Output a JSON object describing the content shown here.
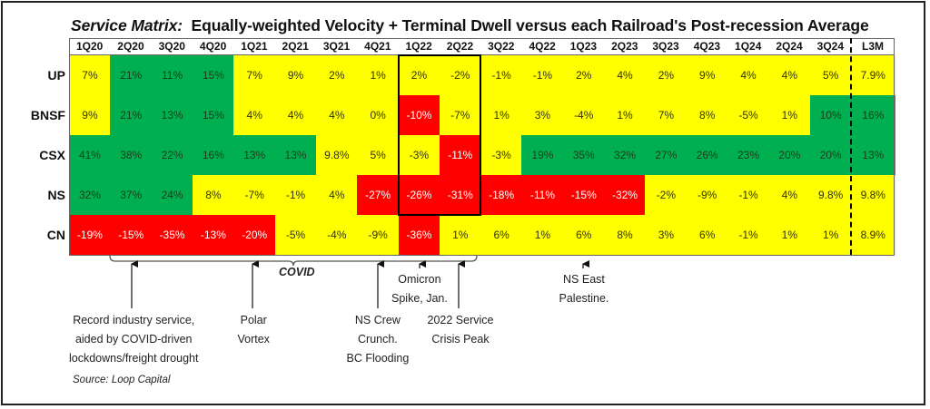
{
  "chart_data": {
    "type": "heatmap",
    "title_prefix": "Service Matrix:",
    "title": "Equally-weighted Velocity + Terminal Dwell versus each Railroad's Post-recession Average",
    "columns": [
      "1Q20",
      "2Q20",
      "3Q20",
      "4Q20",
      "1Q21",
      "2Q21",
      "3Q21",
      "4Q21",
      "1Q22",
      "2Q22",
      "3Q22",
      "4Q22",
      "1Q23",
      "2Q23",
      "3Q23",
      "4Q23",
      "1Q24",
      "2Q24",
      "3Q24",
      "L3M"
    ],
    "rows": [
      {
        "name": "UP",
        "values": [
          "7%",
          "21%",
          "11%",
          "15%",
          "7%",
          "9%",
          "2%",
          "1%",
          "2%",
          "-2%",
          "-1%",
          "-1%",
          "2%",
          "4%",
          "2%",
          "9%",
          "4%",
          "4%",
          "5%",
          "7.9%"
        ],
        "colors": [
          "y",
          "g",
          "g",
          "g",
          "y",
          "y",
          "y",
          "y",
          "y",
          "y",
          "y",
          "y",
          "y",
          "y",
          "y",
          "y",
          "y",
          "y",
          "y",
          "y"
        ]
      },
      {
        "name": "BNSF",
        "values": [
          "9%",
          "21%",
          "13%",
          "15%",
          "4%",
          "4%",
          "4%",
          "0%",
          "-10%",
          "-7%",
          "1%",
          "3%",
          "-4%",
          "1%",
          "7%",
          "8%",
          "-5%",
          "1%",
          "10%",
          "16%"
        ],
        "colors": [
          "y",
          "g",
          "g",
          "g",
          "y",
          "y",
          "y",
          "y",
          "r",
          "y",
          "y",
          "y",
          "y",
          "y",
          "y",
          "y",
          "y",
          "y",
          "g",
          "g"
        ]
      },
      {
        "name": "CSX",
        "values": [
          "41%",
          "38%",
          "22%",
          "16%",
          "13%",
          "13%",
          "9.8%",
          "5%",
          "-3%",
          "-11%",
          "-3%",
          "19%",
          "35%",
          "32%",
          "27%",
          "26%",
          "23%",
          "20%",
          "20%",
          "13%"
        ],
        "colors": [
          "g",
          "g",
          "g",
          "g",
          "g",
          "g",
          "y",
          "y",
          "y",
          "r",
          "y",
          "g",
          "g",
          "g",
          "g",
          "g",
          "g",
          "g",
          "g",
          "g"
        ]
      },
      {
        "name": "NS",
        "values": [
          "32%",
          "37%",
          "24%",
          "8%",
          "-7%",
          "-1%",
          "4%",
          "-27%",
          "-26%",
          "-31%",
          "-18%",
          "-11%",
          "-15%",
          "-32%",
          "-2%",
          "-9%",
          "-1%",
          "4%",
          "9.8%",
          "9.8%"
        ],
        "colors": [
          "g",
          "g",
          "g",
          "y",
          "y",
          "y",
          "y",
          "r",
          "r",
          "r",
          "r",
          "r",
          "r",
          "r",
          "y",
          "y",
          "y",
          "y",
          "y",
          "y"
        ]
      },
      {
        "name": "CN",
        "values": [
          "-19%",
          "-15%",
          "-35%",
          "-13%",
          "-20%",
          "-5%",
          "-4%",
          "-9%",
          "-36%",
          "1%",
          "6%",
          "1%",
          "6%",
          "8%",
          "3%",
          "6%",
          "-1%",
          "1%",
          "1%",
          "8.9%"
        ],
        "colors": [
          "r",
          "r",
          "r",
          "r",
          "r",
          "y",
          "y",
          "y",
          "r",
          "y",
          "y",
          "y",
          "y",
          "y",
          "y",
          "y",
          "y",
          "y",
          "y",
          "y"
        ]
      }
    ],
    "color_legend": {
      "g": "#00b050",
      "y": "#ffff00",
      "r": "#ff0000"
    },
    "highlight_columns": [
      "1Q22",
      "2Q22"
    ],
    "separator_before": "L3M"
  },
  "annotations": {
    "covid_label": "COVID",
    "items": [
      {
        "column": "2Q20",
        "lines": [
          "Record industry service,",
          "aided by COVID-driven",
          "lockdowns/freight drought"
        ]
      },
      {
        "column": "1Q21",
        "lines": [
          "Polar",
          "Vortex"
        ]
      },
      {
        "column": "4Q21",
        "lines": [
          "NS Crew",
          "Crunch.",
          "BC Flooding"
        ]
      },
      {
        "column": "1Q22",
        "lines": [
          "Omicron",
          "Spike, Jan."
        ]
      },
      {
        "column": "2Q22",
        "lines": [
          "2022 Service",
          "Crisis Peak"
        ]
      },
      {
        "column": "1Q23",
        "lines": [
          "NS East",
          "Palestine."
        ]
      }
    ],
    "source": "Source: Loop Capital"
  }
}
